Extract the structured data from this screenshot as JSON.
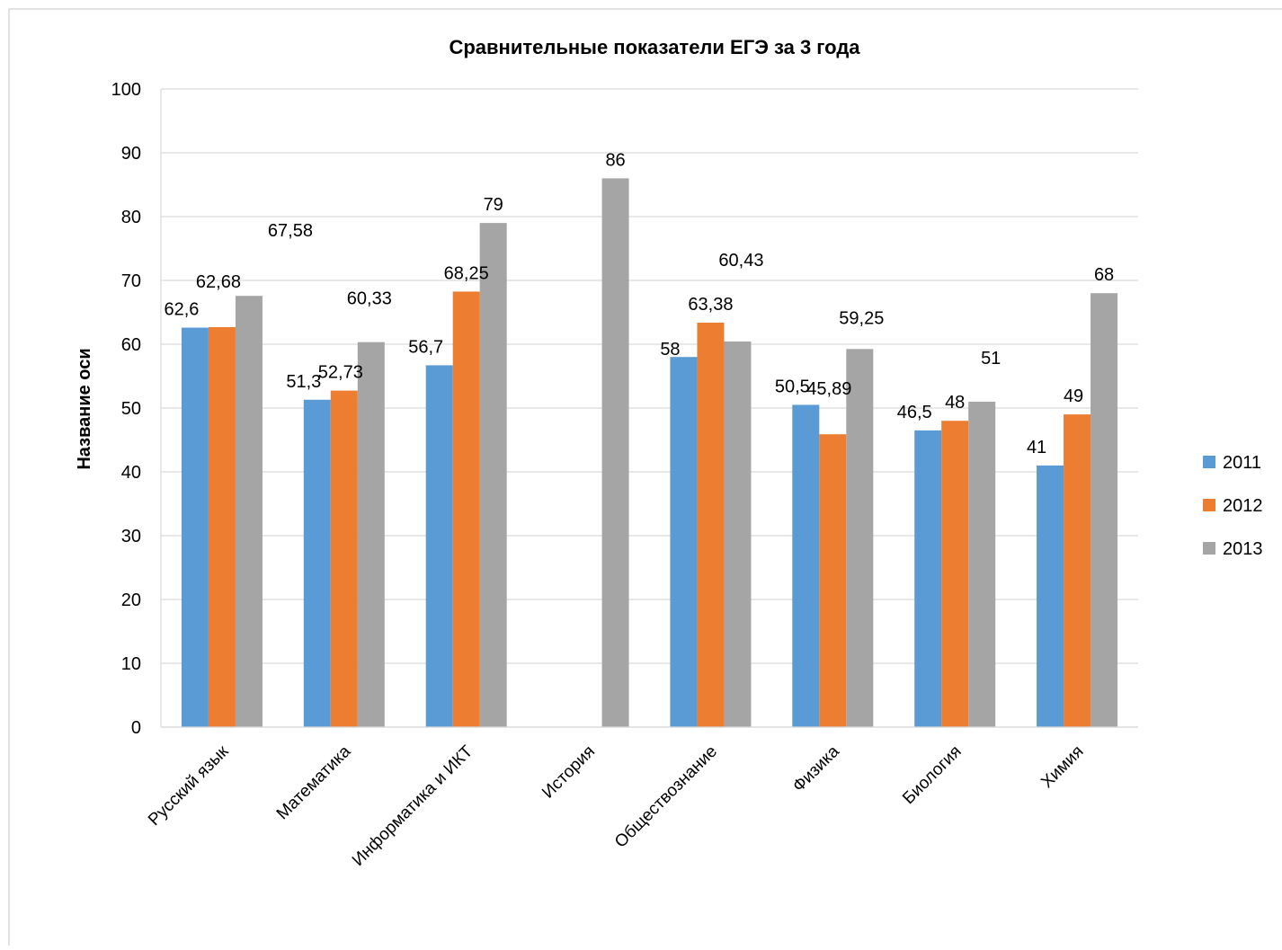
{
  "chart_data": {
    "type": "bar",
    "title": "Сравнительные показатели ЕГЭ  за 3 года",
    "xlabel": "",
    "ylabel": "Название оси",
    "ylim": [
      0,
      100
    ],
    "ytick_step": 10,
    "ytick_labels": [
      "0",
      "10",
      "20",
      "30",
      "40",
      "50",
      "60",
      "70",
      "80",
      "90",
      "100"
    ],
    "grid": true,
    "legend_position": "right",
    "categories": [
      "Русский язык",
      "Математика",
      "Информатика и ИКТ",
      "История",
      "Обществознание",
      "Физика",
      "Биология",
      "Химия"
    ],
    "series": [
      {
        "name": "2011",
        "color": "#5B9BD5",
        "values": [
          62.6,
          51.3,
          56.7,
          null,
          58,
          50.5,
          46.5,
          41
        ],
        "labels": [
          "62,6",
          "51,3",
          "56,7",
          "",
          "58",
          "50,5",
          "46,5",
          "41"
        ]
      },
      {
        "name": "2012",
        "color": "#ED7D31",
        "values": [
          62.68,
          52.73,
          68.25,
          null,
          63.38,
          45.89,
          48,
          49
        ],
        "labels": [
          "62,68",
          "52,73",
          "68,25",
          "",
          "63,38",
          "45,89",
          "48",
          "49"
        ]
      },
      {
        "name": "2013",
        "color": "#A5A5A5",
        "values": [
          67.58,
          60.33,
          79,
          86,
          60.43,
          59.25,
          51,
          68
        ],
        "labels": [
          "67,58",
          "60,33",
          "79",
          "86",
          "60,43",
          "59,25",
          "51",
          "68"
        ]
      }
    ]
  }
}
